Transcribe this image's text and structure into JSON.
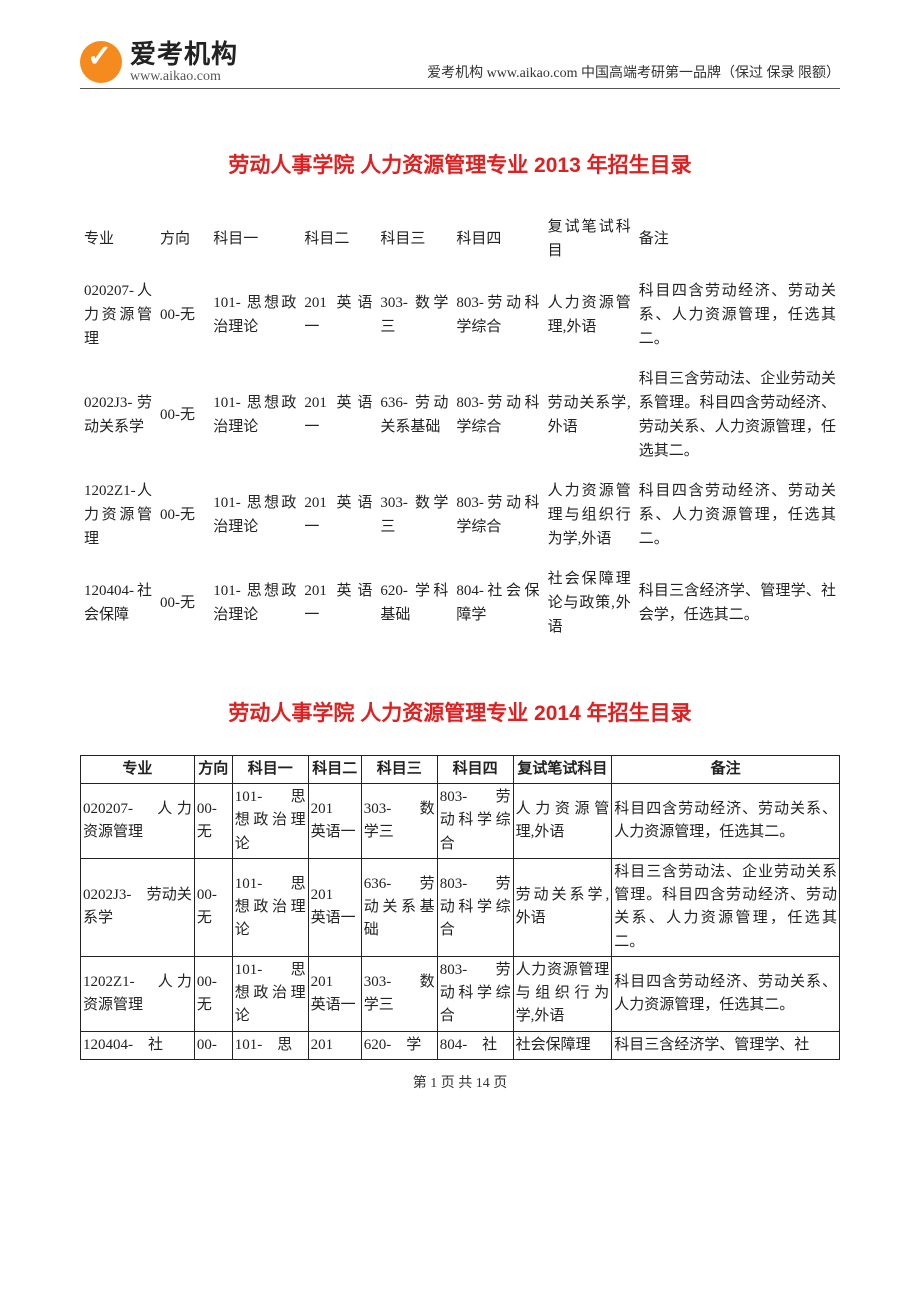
{
  "header": {
    "logo_cn": "爱考机构",
    "logo_url": "www.aikao.com",
    "right_text": "爱考机构 www.aikao.com  中国高端考研第一品牌（保过  保录  限额）"
  },
  "section1": {
    "title": "劳动人事学院  人力资源管理专业 2013 年招生目录",
    "title_color": "#e02020",
    "title_fontsize": 21,
    "columns": [
      "专业",
      "方向",
      "科目一",
      "科目二",
      "科目三",
      "科目四",
      "复试笔试科目",
      "备注"
    ],
    "col_widths_pct": [
      10,
      7,
      12,
      10,
      10,
      12,
      12,
      27
    ],
    "rows": [
      [
        "020207-人力资源管理",
        "00-无",
        "101- 思想政治理论",
        "201 英语一",
        "303- 数学三",
        "803-劳动科学综合",
        "人力资源管理,外语",
        "科目四含劳动经济、劳动关系、人力资源管理，任选其二。"
      ],
      [
        "0202J3-劳动关系学",
        "00-无",
        "101- 思想政治理论",
        "201 英语一",
        "636- 劳动关系基础",
        "803-劳动科学综合",
        "劳动关系学,外语",
        "科目三含劳动法、企业劳动关系管理。科目四含劳动经济、劳动关系、人力资源管理，任选其二。"
      ],
      [
        "1202Z1-人力资源管理",
        "00-无",
        "101- 思想政治理论",
        "201 英语一",
        "303- 数学三",
        "803-劳动科学综合",
        "人力资源管理与组织行为学,外语",
        "科目四含劳动经济、劳动关系、人力资源管理，任选其二。"
      ],
      [
        "120404-社会保障",
        "00-无",
        "101- 思想政治理论",
        "201 英语一",
        "620- 学科基础",
        "804-社会保障学",
        "社会保障理论与政策,外语",
        "科目三含经济学、管理学、社会学，任选其二。"
      ]
    ]
  },
  "section2": {
    "title": "劳动人事学院  人力资源管理专业 2014 年招生目录",
    "title_color": "#e02020",
    "title_fontsize": 21,
    "columns": [
      "专业",
      "方向",
      "科目一",
      "科目二",
      "科目三",
      "科目四",
      "复试笔试科目",
      "备注"
    ],
    "col_widths_pct": [
      15,
      5,
      10,
      7,
      10,
      10,
      13,
      30
    ],
    "rows": [
      [
        "020207-　人力资源管理",
        "00-无",
        "101-　思想政治理论",
        "201　英语一",
        "303-　数学三",
        "803-　劳动科学综合",
        "人力资源管理,外语",
        "科目四含劳动经济、劳动关系、人力资源管理，任选其二。"
      ],
      [
        "0202J3-　劳动关系学",
        "00-无",
        "101-　思想政治理论",
        "201　英语一",
        "636-　劳动关系基础",
        "803-　劳动科学综合",
        "劳动关系学,外语",
        "科目三含劳动法、企业劳动关系管理。科目四含劳动经济、劳动关系、人力资源管理，任选其二。"
      ],
      [
        "1202Z1-　人力资源管理",
        "00-无",
        "101-　思想政治理论",
        "201　英语一",
        "303-　数学三",
        "803-　劳动科学综合",
        "人力资源管理与组织行为学,外语",
        "科目四含劳动经济、劳动关系、人力资源管理，任选其二。"
      ],
      [
        "120404-　社",
        "00-",
        "101-　思",
        "201",
        "620-　学",
        "804-　社",
        "社会保障理",
        "科目三含经济学、管理学、社"
      ]
    ]
  },
  "footer": {
    "text": "第 1 页 共 14 页"
  }
}
